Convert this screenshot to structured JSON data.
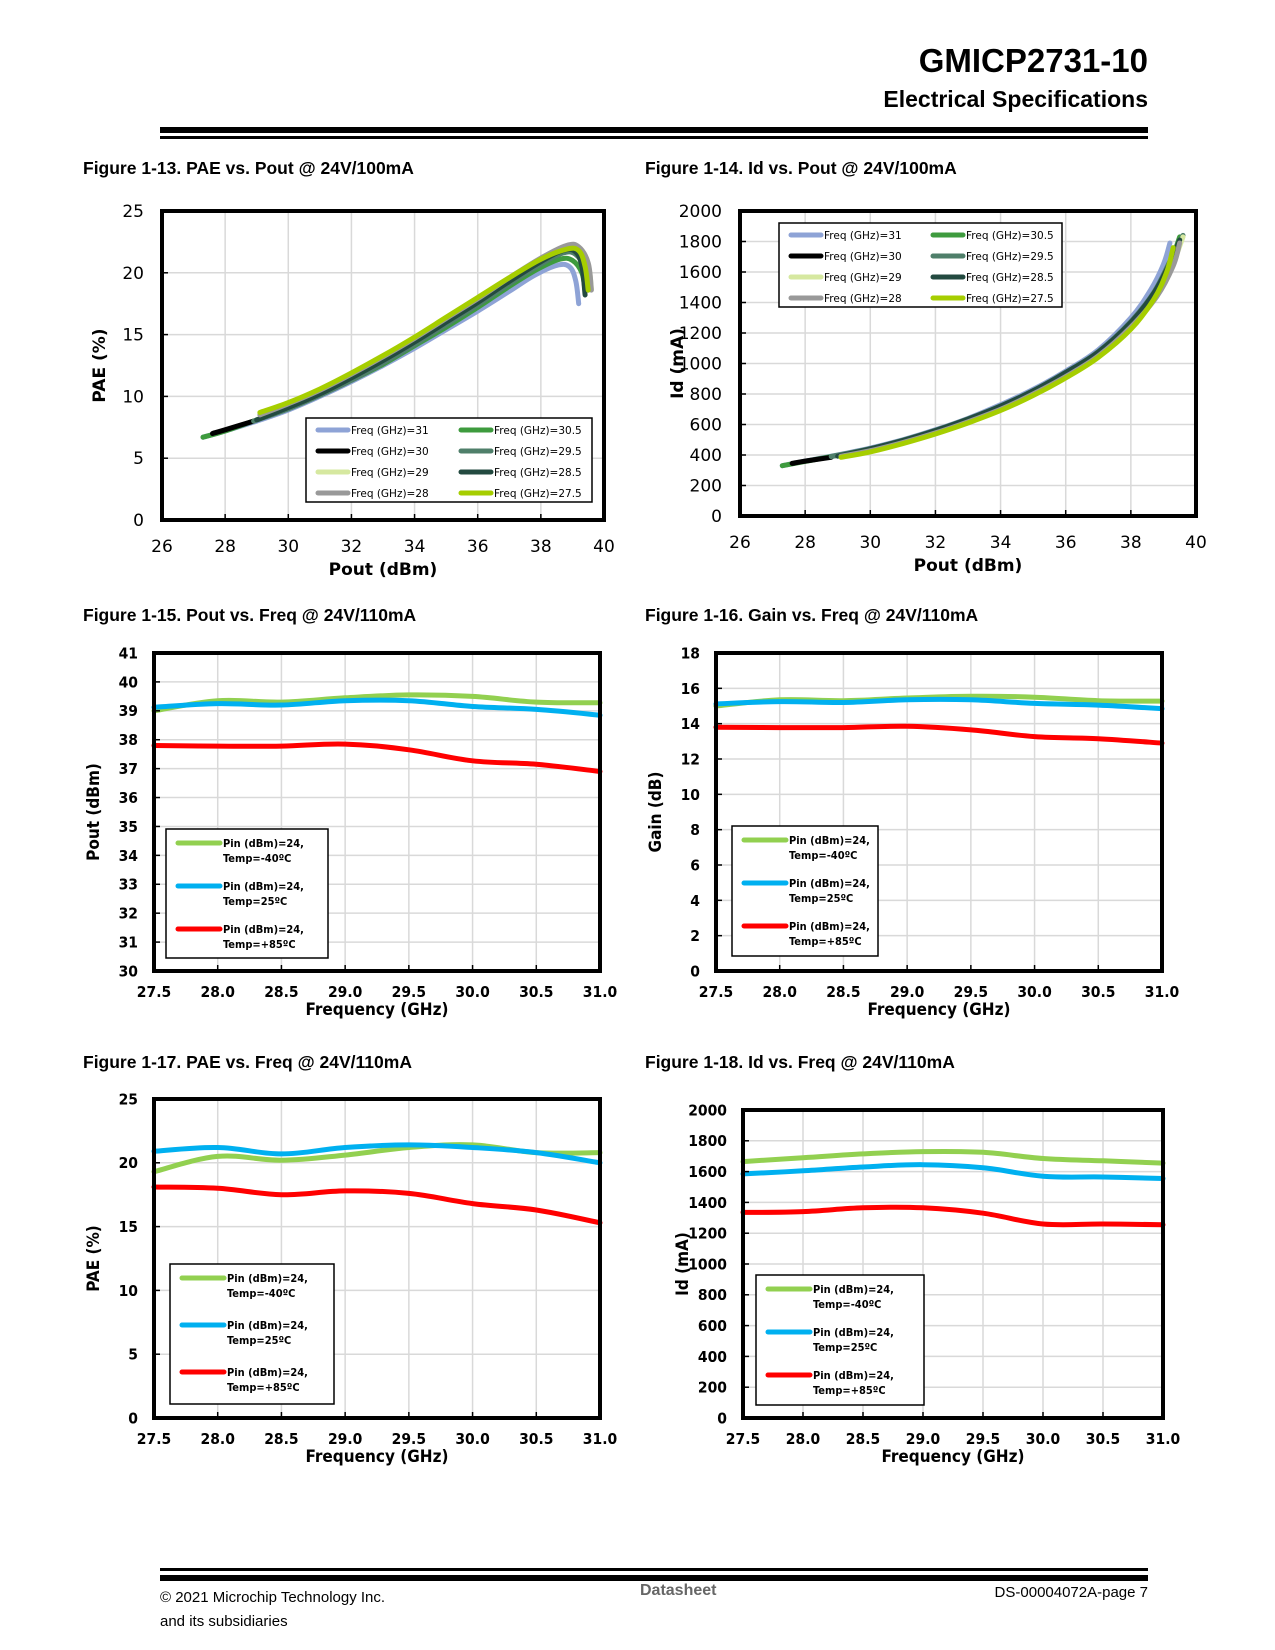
{
  "header": {
    "title": "GMICP2731-10",
    "subtitle": "Electrical Specifications"
  },
  "footer": {
    "copyright_line1": "© 2021 Microchip Technology Inc.",
    "copyright_line2": "and its subsidiaries",
    "center": "Datasheet",
    "page": "DS-00004072A-page 7"
  },
  "figures": [
    {
      "caption": "Figure 1-13.  PAE vs. Pout @ 24V/100mA"
    },
    {
      "caption": "Figure 1-14.  Id vs. Pout @ 24V/100mA"
    },
    {
      "caption": "Figure 1-15.  Pout vs. Freq @ 24V/110mA"
    },
    {
      "caption": "Figure 1-16.  Gain vs. Freq @ 24V/110mA"
    },
    {
      "caption": "Figure 1-17.  PAE vs. Freq @ 24V/110mA"
    },
    {
      "caption": "Figure 1-18.  Id vs. Freq @ 24V/110mA"
    }
  ],
  "chart_data": [
    {
      "type": "line",
      "title": "Figure 1-13.  PAE vs. Pout @ 24V/100mA",
      "xlabel": "Pout (dBm)",
      "ylabel": "PAE (%)",
      "xlim": [
        26,
        40
      ],
      "ylim": [
        0,
        25
      ],
      "xticks": [
        26,
        28,
        30,
        32,
        34,
        36,
        38,
        40
      ],
      "yticks": [
        0,
        5,
        10,
        15,
        20,
        25
      ],
      "grid": true,
      "legend": "bottom-right",
      "legend_columns": 2,
      "series": [
        {
          "name": "Freq (GHz)=31",
          "color": "#8EA3D6",
          "x": [
            27.3,
            28,
            29,
            30,
            31,
            32,
            33,
            34,
            35,
            36,
            37,
            37.8,
            38.5,
            38.9,
            39.1,
            39.2
          ],
          "y": [
            6.7,
            7.2,
            8.0,
            8.9,
            10.0,
            11.2,
            12.5,
            13.9,
            15.4,
            16.9,
            18.5,
            19.8,
            20.6,
            20.5,
            19.4,
            17.5
          ]
        },
        {
          "name": "Freq (GHz)=30.5",
          "color": "#3E9B3E",
          "x": [
            27.3,
            28,
            29,
            30,
            31,
            32,
            33,
            34,
            35,
            36,
            37,
            37.9,
            38.6,
            39.0,
            39.3,
            39.4
          ],
          "y": [
            6.7,
            7.2,
            8.1,
            9.0,
            10.1,
            11.3,
            12.6,
            14.1,
            15.6,
            17.2,
            18.9,
            20.3,
            21.1,
            21.0,
            20.0,
            18.5
          ]
        },
        {
          "name": "Freq (GHz)=30",
          "color": "#000000",
          "x": [
            27.6,
            28,
            28.9
          ],
          "y": [
            7.0,
            7.3,
            8.0
          ]
        },
        {
          "name": "Freq (GHz)=29.5",
          "color": "#4F7F6A",
          "x": [
            28.9,
            30,
            31,
            32,
            33,
            34,
            35,
            36,
            37,
            38,
            38.7,
            39.1,
            39.4,
            39.5
          ],
          "y": [
            8.0,
            9.0,
            10.1,
            11.3,
            12.7,
            14.2,
            15.8,
            17.4,
            19.1,
            20.7,
            21.6,
            21.5,
            20.3,
            18.6
          ]
        },
        {
          "name": "Freq (GHz)=29",
          "color": "#D6E8A0",
          "x": [
            29.1,
            30,
            31,
            32,
            33,
            34,
            35,
            36,
            37,
            38,
            38.8,
            39.2,
            39.5,
            39.6
          ],
          "y": [
            8.6,
            9.4,
            10.5,
            11.7,
            13.1,
            14.6,
            16.2,
            17.8,
            19.5,
            21.0,
            22.0,
            21.9,
            20.6,
            18.7
          ]
        },
        {
          "name": "Freq (GHz)=28.5",
          "color": "#234A40",
          "x": [
            29.0,
            30,
            31,
            32,
            33,
            34,
            35,
            36,
            37,
            38,
            38.7,
            39.1,
            39.3,
            39.4
          ],
          "y": [
            8.1,
            9.1,
            10.2,
            11.5,
            12.9,
            14.4,
            16.0,
            17.6,
            19.3,
            20.9,
            21.8,
            21.7,
            20.5,
            18.2
          ]
        },
        {
          "name": "Freq (GHz)=28",
          "color": "#999999",
          "x": [
            29.1,
            30,
            31,
            32,
            33,
            34,
            35,
            36,
            37,
            38,
            38.8,
            39.2,
            39.5,
            39.6
          ],
          "y": [
            8.5,
            9.4,
            10.5,
            11.8,
            13.2,
            14.7,
            16.3,
            17.9,
            19.6,
            21.2,
            22.2,
            22.1,
            20.8,
            18.6
          ]
        },
        {
          "name": "Freq (GHz)=27.5",
          "color": "#A6CE00",
          "x": [
            29.1,
            30,
            31,
            32,
            33,
            34,
            35,
            36,
            37,
            38,
            38.8,
            39.2,
            39.4,
            39.5
          ],
          "y": [
            8.7,
            9.5,
            10.6,
            11.9,
            13.3,
            14.8,
            16.4,
            18.0,
            19.6,
            21.1,
            21.9,
            21.8,
            20.5,
            18.6
          ]
        }
      ]
    },
    {
      "type": "line",
      "title": "Figure 1-14.  Id vs. Pout @ 24V/100mA",
      "xlabel": "Pout (dBm)",
      "ylabel": "Id (mA)",
      "xlim": [
        26,
        40
      ],
      "ylim": [
        0,
        2000
      ],
      "xticks": [
        26,
        28,
        30,
        32,
        34,
        36,
        38,
        40
      ],
      "yticks": [
        0,
        200,
        400,
        600,
        800,
        1000,
        1200,
        1400,
        1600,
        1800,
        2000
      ],
      "grid": true,
      "legend": "top-left",
      "legend_columns": 2,
      "series": [
        {
          "name": "Freq (GHz)=31",
          "color": "#8EA3D6",
          "x": [
            27.3,
            28,
            29,
            30,
            31,
            32,
            33,
            34,
            35,
            36,
            37,
            38,
            38.6,
            39.0,
            39.2
          ],
          "y": [
            330,
            360,
            400,
            445,
            500,
            565,
            640,
            730,
            830,
            950,
            1090,
            1300,
            1480,
            1650,
            1790
          ]
        },
        {
          "name": "Freq (GHz)=30.5",
          "color": "#3E9B3E",
          "x": [
            27.3,
            28,
            29,
            30,
            31,
            32,
            33,
            34,
            35,
            36,
            37,
            38,
            38.7,
            39.2,
            39.5
          ],
          "y": [
            330,
            358,
            398,
            440,
            495,
            560,
            635,
            720,
            820,
            940,
            1075,
            1270,
            1460,
            1660,
            1830
          ]
        },
        {
          "name": "Freq (GHz)=30",
          "color": "#000000",
          "x": [
            27.6,
            28,
            28.8
          ],
          "y": [
            345,
            360,
            385
          ]
        },
        {
          "name": "Freq (GHz)=29.5",
          "color": "#4F7F6A",
          "x": [
            28.8,
            30,
            31,
            32,
            33,
            34,
            35,
            36,
            37,
            38,
            38.7,
            39.2,
            39.6
          ],
          "y": [
            390,
            442,
            497,
            562,
            637,
            722,
            822,
            942,
            1078,
            1275,
            1465,
            1670,
            1840
          ]
        },
        {
          "name": "Freq (GHz)=29",
          "color": "#D6E8A0",
          "x": [
            29.1,
            30,
            31,
            32,
            33,
            34,
            35,
            36,
            37,
            38,
            38.8,
            39.3,
            39.6
          ],
          "y": [
            395,
            430,
            485,
            548,
            622,
            705,
            805,
            920,
            1055,
            1245,
            1450,
            1660,
            1830
          ]
        },
        {
          "name": "Freq (GHz)=28.5",
          "color": "#234A40",
          "x": [
            29.0,
            30,
            31,
            32,
            33,
            34,
            35,
            36,
            37,
            38,
            38.7,
            39.2,
            39.5
          ],
          "y": [
            392,
            440,
            495,
            560,
            635,
            720,
            820,
            940,
            1075,
            1270,
            1460,
            1660,
            1810
          ]
        },
        {
          "name": "Freq (GHz)=28",
          "color": "#999999",
          "x": [
            29.1,
            30,
            31,
            32,
            33,
            34,
            35,
            36,
            37,
            38,
            38.8,
            39.3,
            39.5
          ],
          "y": [
            392,
            428,
            482,
            545,
            618,
            700,
            800,
            915,
            1050,
            1240,
            1440,
            1640,
            1790
          ]
        },
        {
          "name": "Freq (GHz)=27.5",
          "color": "#A6CE00",
          "x": [
            29.1,
            30,
            31,
            32,
            33,
            34,
            35,
            36,
            37,
            38,
            38.7,
            39.1,
            39.3
          ],
          "y": [
            385,
            420,
            475,
            538,
            610,
            692,
            790,
            905,
            1040,
            1225,
            1420,
            1600,
            1760
          ]
        }
      ]
    },
    {
      "type": "line",
      "title": "Figure 1-15.  Pout vs. Freq @ 24V/110mA",
      "xlabel": "Frequency (GHz)",
      "ylabel": "Pout (dBm)",
      "xlim": [
        27.5,
        31.0
      ],
      "ylim": [
        30,
        41
      ],
      "xticks": [
        27.5,
        28.0,
        28.5,
        29.0,
        29.5,
        30.0,
        30.5,
        31.0
      ],
      "yticks": [
        30,
        31,
        32,
        33,
        34,
        35,
        36,
        37,
        38,
        39,
        40,
        41
      ],
      "grid": true,
      "legend": "bottom-left",
      "x": [
        27.5,
        28.0,
        28.5,
        29.0,
        29.5,
        30.0,
        30.5,
        31.0
      ],
      "series": [
        {
          "name": "Pin (dBm)=24, Temp=-40ºC",
          "color": "#92D050",
          "values": [
            39.0,
            39.35,
            39.3,
            39.45,
            39.55,
            39.5,
            39.3,
            39.28
          ]
        },
        {
          "name": "Pin (dBm)=24, Temp=25ºC",
          "color": "#00B0F0",
          "values": [
            39.12,
            39.25,
            39.2,
            39.35,
            39.35,
            39.15,
            39.05,
            38.85
          ]
        },
        {
          "name": "Pin (dBm)=24, Temp=+85ºC",
          "color": "#FF0000",
          "values": [
            37.8,
            37.78,
            37.78,
            37.85,
            37.65,
            37.27,
            37.15,
            36.9
          ]
        }
      ]
    },
    {
      "type": "line",
      "title": "Figure 1-16.  Gain vs. Freq @ 24V/110mA",
      "xlabel": "Frequency (GHz)",
      "ylabel": "Gain (dB)",
      "xlim": [
        27.5,
        31.0
      ],
      "ylim": [
        0,
        18
      ],
      "xticks": [
        27.5,
        28.0,
        28.5,
        29.0,
        29.5,
        30.0,
        30.5,
        31.0
      ],
      "yticks": [
        0,
        2,
        4,
        6,
        8,
        10,
        12,
        14,
        16,
        18
      ],
      "grid": true,
      "legend": "bottom-left",
      "x": [
        27.5,
        28.0,
        28.5,
        29.0,
        29.5,
        30.0,
        30.5,
        31.0
      ],
      "series": [
        {
          "name": "Pin (dBm)=24, Temp=-40ºC",
          "color": "#92D050",
          "values": [
            15.0,
            15.35,
            15.3,
            15.45,
            15.55,
            15.5,
            15.3,
            15.28
          ]
        },
        {
          "name": "Pin (dBm)=24, Temp=25ºC",
          "color": "#00B0F0",
          "values": [
            15.12,
            15.25,
            15.2,
            15.35,
            15.35,
            15.15,
            15.05,
            14.85
          ]
        },
        {
          "name": "Pin (dBm)=24, Temp=+85ºC",
          "color": "#FF0000",
          "values": [
            13.8,
            13.78,
            13.78,
            13.85,
            13.65,
            13.27,
            13.15,
            12.9
          ]
        }
      ]
    },
    {
      "type": "line",
      "title": "Figure 1-17.  PAE vs. Freq @ 24V/110mA",
      "xlabel": "Frequency (GHz)",
      "ylabel": "PAE (%)",
      "xlim": [
        27.5,
        31.0
      ],
      "ylim": [
        0,
        25
      ],
      "xticks": [
        27.5,
        28.0,
        28.5,
        29.0,
        29.5,
        30.0,
        30.5,
        31.0
      ],
      "yticks": [
        0,
        5,
        10,
        15,
        20,
        25
      ],
      "grid": true,
      "legend": "bottom-left",
      "x": [
        27.5,
        28.0,
        28.5,
        29.0,
        29.5,
        30.0,
        30.5,
        31.0
      ],
      "series": [
        {
          "name": "Pin (dBm)=24, Temp=-40ºC",
          "color": "#92D050",
          "values": [
            19.3,
            20.5,
            20.2,
            20.6,
            21.2,
            21.4,
            20.8,
            20.8
          ]
        },
        {
          "name": "Pin (dBm)=24, Temp=25ºC",
          "color": "#00B0F0",
          "values": [
            20.9,
            21.2,
            20.7,
            21.2,
            21.4,
            21.2,
            20.8,
            20.0
          ]
        },
        {
          "name": "Pin (dBm)=24, Temp=+85ºC",
          "color": "#FF0000",
          "values": [
            18.1,
            18.0,
            17.5,
            17.8,
            17.6,
            16.8,
            16.3,
            15.3
          ]
        }
      ]
    },
    {
      "type": "line",
      "title": "Figure 1-18.  Id vs. Freq @ 24V/110mA",
      "xlabel": "Frequency (GHz)",
      "ylabel": "Id (mA)",
      "xlim": [
        27.5,
        31.0
      ],
      "ylim": [
        0,
        2000
      ],
      "xticks": [
        27.5,
        28.0,
        28.5,
        29.0,
        29.5,
        30.0,
        30.5,
        31.0
      ],
      "yticks": [
        0,
        200,
        400,
        600,
        800,
        1000,
        1200,
        1400,
        1600,
        1800,
        2000
      ],
      "grid": true,
      "legend": "bottom-left",
      "x": [
        27.5,
        28.0,
        28.5,
        29.0,
        29.5,
        30.0,
        30.5,
        31.0
      ],
      "series": [
        {
          "name": "Pin (dBm)=24, Temp=-40ºC",
          "color": "#92D050",
          "values": [
            1665,
            1690,
            1715,
            1730,
            1725,
            1685,
            1670,
            1655
          ]
        },
        {
          "name": "Pin (dBm)=24, Temp=25ºC",
          "color": "#00B0F0",
          "values": [
            1585,
            1605,
            1630,
            1645,
            1625,
            1570,
            1565,
            1555
          ]
        },
        {
          "name": "Pin (dBm)=24, Temp=+85ºC",
          "color": "#FF0000",
          "values": [
            1335,
            1340,
            1365,
            1365,
            1330,
            1260,
            1260,
            1255
          ]
        }
      ]
    }
  ]
}
